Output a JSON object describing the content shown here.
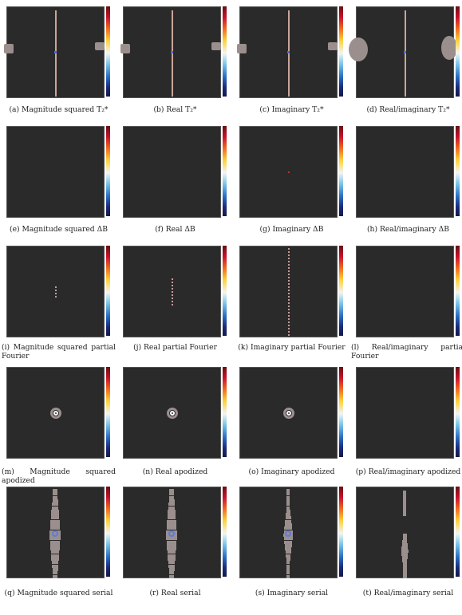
{
  "captions": {
    "a": "(a) Magnitude squared T₂*",
    "b": "(b) Real T₂*",
    "c": "(c) Imaginary T₂*",
    "d": "(d) Real/imaginary T₂*",
    "e": "(e) Magnitude squared ΔB",
    "f": "(f) Real ΔB",
    "g": "(g) Imaginary ΔB",
    "h": "(h) Real/imaginary ΔB",
    "i": "(i) Magnitude squared partial Fourier",
    "j": "(j) Real partial Fourier",
    "k": "(k) Imaginary partial Fourier",
    "l": "(l) Real/imaginary partial Fourier",
    "m": "(m) Magnitude squared apodized",
    "n": "(n) Real apodized",
    "o": "(o) Imaginary apodized",
    "p": "(p) Real/imaginary apodized",
    "q": "(q) Magnitude squared serial",
    "r": "(r) Real serial",
    "s": "(s) Imaginary serial",
    "t": "(t) Real/imaginary serial"
  },
  "colors": {
    "background": "#2a2a2a",
    "feature": "#9b8f8e",
    "centerline": "#c9a59a"
  }
}
